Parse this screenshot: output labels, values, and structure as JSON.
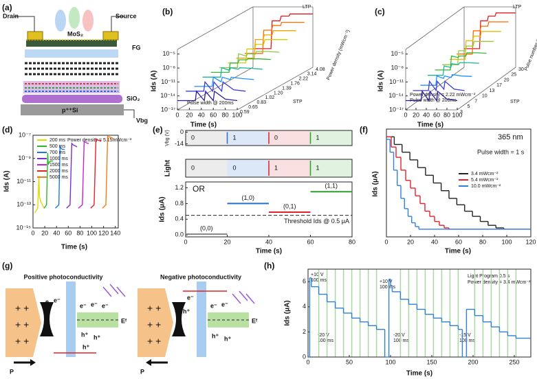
{
  "diagrams": {
    "a": {
      "panel_label": "(a)",
      "labels": [
        "Drain",
        "Source",
        "MoS₂",
        "FG",
        "SiO₂",
        "p⁺⁺Si",
        "Vbg"
      ]
    },
    "g": {
      "panel_label": "(g)",
      "left": {
        "title": "Positive photoconductivity",
        "labels": [
          "e⁻",
          "e",
          "e⁻",
          "e⁻",
          "e⁻",
          "h⁺",
          "h⁺",
          "h⁺",
          "Eᶠ",
          "P"
        ]
      },
      "right": {
        "title": "Negative photoconductivity",
        "labels": [
          "e⁻",
          "h⁺",
          "h⁺",
          "e⁻",
          "e⁻",
          "h⁺",
          "h⁺",
          "Eᶠ",
          "P"
        ]
      }
    }
  },
  "chart_data": [
    {
      "type": "line3d",
      "panel_label": "(b)",
      "x_label": "Time (s)",
      "y_label": "Ids (A)",
      "depth_label": "Power density (mWcm⁻²)",
      "annotations": [
        "Pulse width @ 200ms",
        "LTP",
        "STP"
      ],
      "xlim": [
        0,
        100
      ],
      "xticks": [
        0,
        20,
        40,
        60,
        80,
        100
      ],
      "ylim": [
        1e-17,
        0.0001
      ],
      "log_y": true,
      "yticks": [
        {
          "value": 1e-05,
          "label": "10⁻⁵"
        },
        {
          "value": 1e-08,
          "label": "10⁻⁸"
        },
        {
          "value": 1e-11,
          "label": "10⁻¹¹"
        },
        {
          "value": 1e-14,
          "label": "10⁻¹⁴"
        },
        {
          "value": 1e-17,
          "label": "10⁻¹⁷"
        }
      ],
      "x": [
        0,
        30,
        32,
        45,
        47,
        60,
        62,
        80,
        100
      ],
      "series": [
        {
          "name": "4.08",
          "color": "#e41a1c",
          "values": [
            1e-13,
            1e-13,
            1e-07,
            1e-07,
            1e-06,
            1e-06,
            3e-06,
            3e-06,
            3e-06
          ]
        },
        {
          "name": "3.14",
          "color": "#ff6a00",
          "values": [
            1e-13,
            1e-13,
            1e-08,
            1e-08,
            1e-07,
            1e-07,
            5e-07,
            5e-07,
            5e-07
          ]
        },
        {
          "name": "2.22",
          "color": "#f0a000",
          "values": [
            1e-13,
            1e-13,
            1e-09,
            1e-09,
            1e-08,
            1e-08,
            8e-08,
            8e-08,
            8e-08
          ]
        },
        {
          "name": "1.76",
          "color": "#d8cc00",
          "values": [
            1e-13,
            1e-13,
            1e-10,
            1e-10,
            1e-09,
            1e-09,
            1e-08,
            1e-08,
            1e-08
          ]
        },
        {
          "name": "1.39",
          "color": "#8cc63f",
          "values": [
            1e-13,
            1e-13,
            1e-10,
            3e-11,
            1e-10,
            8e-11,
            3e-10,
            3e-10,
            2e-10
          ]
        },
        {
          "name": "1.20",
          "color": "#2eb82e",
          "values": [
            1e-13,
            1e-13,
            1e-11,
            1e-11,
            5e-11,
            5e-11,
            8e-11,
            8e-11,
            6e-11
          ]
        },
        {
          "name": "1.02",
          "color": "#1ab5a0",
          "values": [
            1e-13,
            1e-13,
            1e-11,
            3e-12,
            1e-11,
            5e-12,
            1e-11,
            8e-12,
            5e-12
          ]
        },
        {
          "name": "0.83",
          "color": "#1e90ff",
          "values": [
            1e-14,
            1e-14,
            1e-12,
            1e-13,
            1e-12,
            3e-13,
            1e-12,
            5e-13,
            3e-13
          ]
        },
        {
          "name": "0.65",
          "color": "#3b3bd6",
          "values": [
            1e-14,
            1e-14,
            1e-12,
            1e-14,
            1e-12,
            1e-14,
            1e-12,
            2e-14,
            1e-14
          ]
        },
        {
          "name": "0.59",
          "color": "#2a1a9a",
          "values": [
            1e-15,
            1e-15,
            1e-13,
            1e-15,
            1e-13,
            1e-15,
            1e-13,
            2e-15,
            1e-15
          ]
        }
      ]
    },
    {
      "type": "line3d",
      "panel_label": "(c)",
      "x_label": "Time (s)",
      "y_label": "Ids (A)",
      "depth_label": "Pulse number #",
      "annotations": [
        "Power density = 2.22 mWcm⁻²",
        "Pulse width @ 200ms",
        "LTP",
        "STP"
      ],
      "xlim": [
        0,
        100
      ],
      "xticks": [
        0,
        20,
        40,
        60,
        80,
        100
      ],
      "ylim": [
        1e-17,
        0.0001
      ],
      "log_y": true,
      "yticks": [
        {
          "value": 1e-05,
          "label": "10⁻⁵"
        },
        {
          "value": 1e-08,
          "label": "10⁻⁸"
        },
        {
          "value": 1e-11,
          "label": "10⁻¹¹"
        },
        {
          "value": 1e-14,
          "label": "10⁻¹⁴"
        },
        {
          "value": 1e-17,
          "label": "10⁻¹⁷"
        }
      ],
      "x": [
        0,
        30,
        32,
        45,
        47,
        60,
        62,
        80,
        100
      ],
      "series": [
        {
          "name": "30",
          "color": "#e41a1c",
          "values": [
            1e-13,
            1e-13,
            1e-07,
            1e-07,
            1e-06,
            1e-06,
            5e-06,
            5e-06,
            5e-06
          ]
        },
        {
          "name": "25",
          "color": "#ff6a00",
          "values": [
            1e-13,
            1e-13,
            1e-08,
            1e-08,
            1e-07,
            1e-07,
            8e-07,
            8e-07,
            8e-07
          ]
        },
        {
          "name": "20",
          "color": "#e8b800",
          "values": [
            1e-13,
            1e-13,
            1e-09,
            1e-09,
            1e-08,
            1e-08,
            1e-07,
            1e-07,
            1e-07
          ]
        },
        {
          "name": "17",
          "color": "#9acd32",
          "values": [
            1e-13,
            1e-13,
            1e-10,
            1e-10,
            1e-09,
            1e-09,
            1e-08,
            1e-08,
            1e-08
          ]
        },
        {
          "name": "13",
          "color": "#2eb82e",
          "values": [
            1e-13,
            1e-13,
            1e-10,
            5e-11,
            1e-10,
            1e-10,
            5e-10,
            5e-10,
            4e-10
          ]
        },
        {
          "name": "10",
          "color": "#1ab5a0",
          "values": [
            1e-13,
            1e-13,
            1e-11,
            5e-12,
            3e-11,
            2e-11,
            5e-11,
            5e-11,
            4e-11
          ]
        },
        {
          "name": "7",
          "color": "#1e90ff",
          "values": [
            1e-14,
            1e-14,
            1e-12,
            3e-13,
            1e-12,
            5e-13,
            2e-12,
            1e-12,
            8e-13
          ]
        },
        {
          "name": "5",
          "color": "#3b3bd6",
          "values": [
            1e-14,
            1e-14,
            1e-12,
            1e-14,
            1e-12,
            2e-14,
            1e-12,
            2e-14,
            1e-14
          ]
        },
        {
          "name": "3",
          "color": "#2a1a9a",
          "values": [
            1e-15,
            1e-15,
            1e-13,
            1e-15,
            1e-13,
            1e-15,
            1e-13,
            2e-15,
            1e-15
          ]
        }
      ]
    },
    {
      "type": "line",
      "panel_label": "(d)",
      "x_label": "Time (s)",
      "y_label": "Ids (A)",
      "annotations": [
        "Power density = 5.15mWcm⁻²"
      ],
      "xlim": [
        0,
        145
      ],
      "xticks": [
        0,
        20,
        40,
        60,
        80,
        100,
        120,
        140
      ],
      "ylim": [
        1e-15,
        1e-07
      ],
      "log_y": true,
      "legend": "upper left",
      "yticks": [
        {
          "value": 1e-07,
          "label": "10⁻⁷"
        },
        {
          "value": 1e-09,
          "label": "10⁻⁹"
        },
        {
          "value": 1e-11,
          "label": "10⁻¹¹"
        },
        {
          "value": 1e-13,
          "label": "10⁻¹³"
        },
        {
          "value": 1e-15,
          "label": "10⁻¹⁵"
        }
      ],
      "series": [
        {
          "name": "200 ms",
          "color": "#e6d800",
          "x": [
            3,
            8,
            10,
            11,
            13,
            16,
            19
          ],
          "values": [
            2e-14,
            5e-14,
            3e-11,
            5e-13,
            2e-13,
            1e-13,
            5e-14
          ]
        },
        {
          "name": "500 ms",
          "color": "#2db52d",
          "x": [
            19,
            23,
            25,
            26,
            28,
            30,
            34
          ],
          "values": [
            5e-14,
            1e-13,
            3e-09,
            3e-10,
            5e-10,
            6e-10,
            6e-10
          ]
        },
        {
          "name": "700 ms",
          "color": "#1a7ad9",
          "x": [
            38,
            44,
            46,
            47,
            50,
            54
          ],
          "values": [
            5e-14,
            1e-13,
            1e-08,
            8e-09,
            6e-09,
            6e-09
          ]
        },
        {
          "name": "1000 ms",
          "color": "#7b2fd1",
          "x": [
            57,
            63,
            66,
            68,
            72,
            75
          ],
          "values": [
            5e-14,
            1e-13,
            2e-08,
            1.5e-08,
            1.2e-08,
            1e-08
          ]
        },
        {
          "name": "1500 ms",
          "color": "#c424d6",
          "x": [
            77,
            84,
            87,
            89,
            93,
            95
          ],
          "values": [
            5e-14,
            1e-13,
            3e-08,
            2.5e-08,
            2e-08,
            2e-08
          ]
        },
        {
          "name": "2000 ms",
          "color": "#e8202a",
          "x": [
            98,
            104,
            107,
            109,
            113,
            116
          ],
          "values": [
            5e-14,
            1e-13,
            5e-08,
            4e-08,
            3.5e-08,
            3e-08
          ]
        },
        {
          "name": "5000 ms",
          "color": "#f07d1a",
          "x": [
            118,
            124,
            127,
            130,
            134,
            137
          ],
          "values": [
            5e-14,
            1e-13,
            8e-08,
            7e-08,
            6e-08,
            5e-08
          ]
        }
      ]
    },
    {
      "type": "logic",
      "panel_label": "(e)",
      "x_label": "Time (s)",
      "vbg_label": "Vbg (V)",
      "light_label": "Light",
      "y_label": "Ids (μA)",
      "title": "OR",
      "xlim": [
        0,
        80
      ],
      "xticks": [
        0,
        20,
        40,
        60,
        80
      ],
      "segment_x": [
        0,
        20,
        40,
        60,
        80
      ],
      "segment_colors": [
        "#ececec",
        "#dce8f7",
        "#f9e0e0",
        "#e0f2e0"
      ],
      "vbg_bits": [
        "0",
        "1",
        "0",
        "1"
      ],
      "light_bits": [
        "0",
        "0",
        "1",
        "1"
      ],
      "vbg_ylim": [
        -16,
        2
      ],
      "vbg_yticks": [
        0,
        -14
      ],
      "vbg_pulse_x": [
        20,
        40,
        60
      ],
      "vbg_pulse_colors": [
        "#1f6fd6",
        "#e0202a",
        "#2aa02a"
      ],
      "light_pulse_x": [
        40,
        60
      ],
      "light_pulse_colors": [
        "#e0202a",
        "#2aa02a"
      ],
      "ylim": [
        -0.05,
        1.35
      ],
      "yticks": [
        {
          "value": 0,
          "label": "0.0"
        },
        0.4,
        0.8,
        1.2
      ],
      "series": [
        {
          "name": "(0,0)",
          "color": "#888888",
          "x": [
            0,
            20
          ],
          "value": 0.02
        },
        {
          "name": "(1,0)",
          "color": "#1f6fd6",
          "x": [
            20,
            40
          ],
          "value": 0.8
        },
        {
          "name": "(0,1)",
          "color": "#e0202a",
          "x": [
            40,
            60
          ],
          "value": 0.58
        },
        {
          "name": "(1,1)",
          "color": "#2aa02a",
          "x": [
            60,
            80
          ],
          "value": 1.1
        }
      ],
      "threshold": {
        "value": 0.5,
        "label": "Threshold Ids @ 0.5 μA"
      }
    },
    {
      "type": "step",
      "panel_label": "(f)",
      "x_label": "Time (s)",
      "y_label": "Ids (μA)",
      "annotations": [
        "365 nm",
        "Pulse width = 1 s"
      ],
      "xlim": [
        0,
        120
      ],
      "xticks": [
        0,
        20,
        40,
        60,
        80,
        100,
        120
      ],
      "ylim": [
        0,
        4.2
      ],
      "legend": "center right",
      "series": [
        {
          "name": "3.4 mWcm⁻²",
          "color": "#222222",
          "x": [
            0,
            6.5,
            13,
            19.5,
            26,
            32.5,
            39,
            45.5,
            52,
            58.5,
            65,
            71.5,
            78,
            84.5,
            91,
            97.5
          ],
          "values": [
            3.9,
            3.6,
            3.3,
            3.0,
            2.7,
            2.4,
            2.1,
            1.8,
            1.5,
            1.25,
            1.0,
            0.8,
            0.6,
            0.45,
            0.35,
            0.3
          ]
        },
        {
          "name": "5.4 mWcm⁻²",
          "color": "#e8202a",
          "x": [
            0,
            4,
            8,
            12,
            16,
            20,
            24,
            28,
            32,
            36,
            40,
            44,
            48,
            52
          ],
          "values": [
            3.9,
            3.5,
            3.1,
            2.6,
            2.2,
            1.9,
            1.6,
            1.3,
            1.0,
            0.8,
            0.6,
            0.45,
            0.35,
            0.3
          ]
        },
        {
          "name": "10.0 mWcm⁻²",
          "color": "#2f7fd6",
          "x": [
            0,
            3,
            6,
            9,
            12,
            15,
            18,
            21,
            24,
            27
          ],
          "values": [
            3.8,
            3.3,
            2.6,
            2.0,
            1.5,
            1.1,
            0.8,
            0.55,
            0.4,
            0.3
          ]
        }
      ]
    },
    {
      "type": "step",
      "panel_label": "(h)",
      "x_label": "Time (s)",
      "y_label": "Ids (μA)",
      "annotations": [
        "Light Program 0.5 s",
        "Power density = 3.4 mWcm⁻²",
        "+10 V",
        "100 ms",
        "-20 V",
        "100 ms",
        "+10 V",
        "100 ms",
        "-20 V",
        "100 ms",
        "-15 V",
        "100 ms"
      ],
      "xlim": [
        0,
        270
      ],
      "xticks": [
        0,
        50,
        100,
        150,
        200,
        250
      ],
      "ylim": [
        0,
        7
      ],
      "yticks": [
        0,
        2,
        4,
        6
      ],
      "light_x": [
        13,
        23,
        33,
        43,
        53,
        63,
        73,
        83,
        112,
        122,
        132,
        142,
        152,
        162,
        172,
        182,
        202,
        212,
        222,
        232,
        242,
        252
      ],
      "light_color": "#a8d8a0",
      "series": [
        {
          "name": "Ids",
          "color": "#2f7fd6",
          "x": [
            0,
            2,
            4,
            13,
            23,
            33,
            43,
            53,
            63,
            73,
            83,
            93,
            98,
            100,
            102,
            112,
            122,
            132,
            142,
            152,
            162,
            172,
            182,
            187,
            192,
            202,
            212,
            222,
            232,
            242,
            252
          ],
          "values": [
            0,
            6.3,
            5.6,
            5.0,
            4.4,
            3.9,
            3.5,
            3.1,
            2.8,
            2.5,
            2.2,
            0,
            6.2,
            5.7,
            5.2,
            4.6,
            4.2,
            3.8,
            3.4,
            3.1,
            2.8,
            2.5,
            2.2,
            0,
            3.8,
            3.3,
            2.8,
            2.4,
            2.0,
            1.7,
            1.5
          ]
        }
      ]
    }
  ]
}
